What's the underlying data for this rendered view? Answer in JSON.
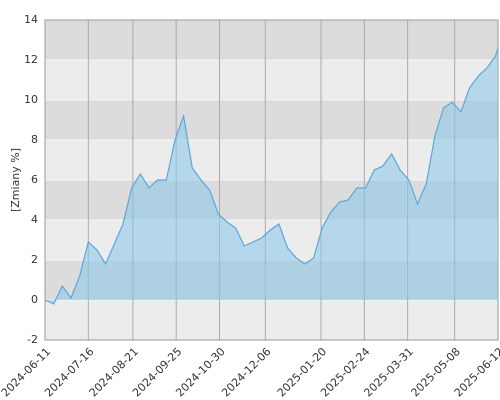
{
  "chart_data": {
    "type": "area",
    "y_label": "[Zmiany %]",
    "x": [
      "2024-06-11",
      "2024-06-18",
      "2024-06-25",
      "2024-07-02",
      "2024-07-09",
      "2024-07-16",
      "2024-07-23",
      "2024-07-30",
      "2024-08-06",
      "2024-08-13",
      "2024-08-20",
      "2024-08-27",
      "2024-09-03",
      "2024-09-10",
      "2024-09-17",
      "2024-09-24",
      "2024-10-01",
      "2024-10-08",
      "2024-10-15",
      "2024-10-22",
      "2024-10-29",
      "2024-11-05",
      "2024-11-12",
      "2024-11-19",
      "2024-11-26",
      "2024-12-03",
      "2024-12-10",
      "2024-12-17",
      "2024-12-24",
      "2024-12-31",
      "2025-01-07",
      "2025-01-14",
      "2025-01-21",
      "2025-01-28",
      "2025-02-04",
      "2025-02-11",
      "2025-02-18",
      "2025-02-25",
      "2025-03-04",
      "2025-03-11",
      "2025-03-18",
      "2025-03-25",
      "2025-04-01",
      "2025-04-08",
      "2025-04-15",
      "2025-04-22",
      "2025-04-29",
      "2025-05-06",
      "2025-05-13",
      "2025-05-20",
      "2025-05-27",
      "2025-06-03",
      "2025-06-10",
      "2025-06-12"
    ],
    "values": [
      0,
      -0.2,
      0.7,
      0.1,
      1.2,
      2.9,
      2.5,
      1.8,
      2.8,
      3.8,
      5.6,
      6.3,
      5.6,
      6.0,
      6.0,
      8.0,
      9.2,
      6.6,
      6.0,
      5.5,
      4.3,
      3.9,
      3.6,
      2.7,
      2.9,
      3.1,
      3.5,
      3.8,
      2.6,
      2.1,
      1.8,
      2.1,
      3.6,
      4.4,
      4.9,
      5.0,
      5.6,
      5.6,
      6.5,
      6.7,
      7.3,
      6.5,
      6.0,
      4.8,
      5.8,
      8.2,
      9.6,
      9.9,
      9.4,
      10.6,
      11.2,
      11.6,
      12.2,
      12.6
    ],
    "color": "#5aa7e0",
    "xlim": [
      "2024-06-11",
      "2025-06-12"
    ],
    "xticks": [
      "2024-06-11",
      "2024-07-16",
      "2024-08-21",
      "2024-09-25",
      "2024-10-30",
      "2024-12-06",
      "2025-01-20",
      "2025-02-24",
      "2025-03-31",
      "2025-05-08",
      "2025-06-12"
    ],
    "ylim": [
      -2,
      14
    ],
    "yticks": [
      -2,
      0,
      2,
      4,
      6,
      8,
      10,
      12,
      14
    ],
    "grid": true
  }
}
